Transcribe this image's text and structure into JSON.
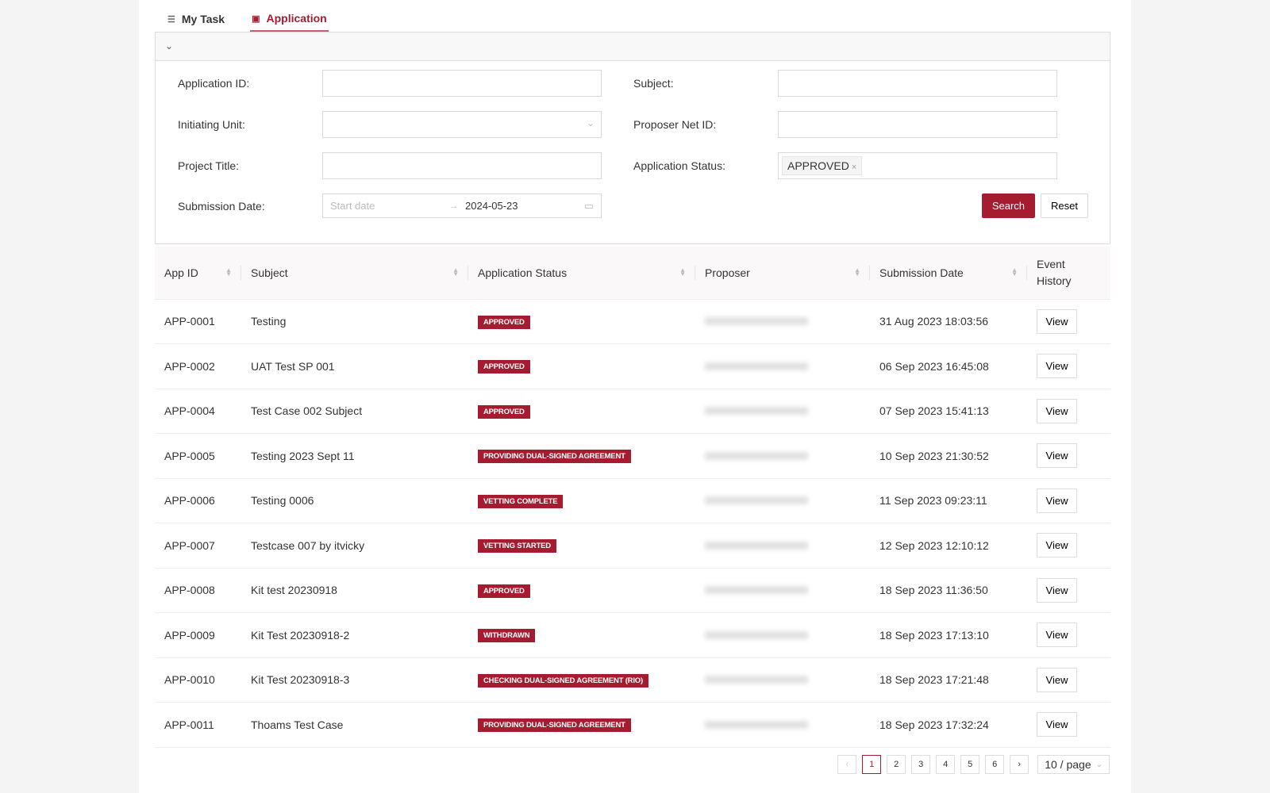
{
  "tabs": [
    {
      "label": "My Task",
      "icon": "list-icon"
    },
    {
      "label": "Application",
      "icon": "document-search-icon",
      "active": true
    }
  ],
  "filters": {
    "application_id": {
      "label": "Application ID",
      "value": ""
    },
    "subject": {
      "label": "Subject",
      "value": ""
    },
    "initiating_unit": {
      "label": "Initiating Unit",
      "value": ""
    },
    "proposer_net_id": {
      "label": "Proposer Net ID",
      "value": ""
    },
    "project_title": {
      "label": "Project Title",
      "value": ""
    },
    "application_status": {
      "label": "Application Status",
      "tags": [
        "APPROVED"
      ]
    },
    "submission_date": {
      "label": "Submission Date",
      "start_placeholder": "Start date",
      "end": "2024-05-23",
      "separator": "→"
    },
    "search_label": "Search",
    "reset_label": "Reset"
  },
  "table": {
    "headers": [
      "App ID",
      "Subject",
      "Application Status",
      "Proposer",
      "Submission Date",
      "Event History"
    ],
    "rows": [
      {
        "id": "APP-0001",
        "subject": "Testing",
        "status": "APPROVED",
        "date": "31 Aug 2023 18:03:56",
        "action": "View"
      },
      {
        "id": "APP-0002",
        "subject": "UAT Test SP 001",
        "status": "APPROVED",
        "date": "06 Sep 2023 16:45:08",
        "action": "View"
      },
      {
        "id": "APP-0004",
        "subject": "Test Case 002 Subject",
        "status": "APPROVED",
        "date": "07 Sep 2023 15:41:13",
        "action": "View"
      },
      {
        "id": "APP-0005",
        "subject": "Testing 2023 Sept 11",
        "status": "PROVIDING DUAL-SIGNED AGREEMENT",
        "date": "10 Sep 2023 21:30:52",
        "action": "View"
      },
      {
        "id": "APP-0006",
        "subject": "Testing 0006",
        "status": "VETTING COMPLETE",
        "date": "11 Sep 2023 09:23:11",
        "action": "View"
      },
      {
        "id": "APP-0007",
        "subject": "Testcase 007 by itvicky",
        "status": "VETTING STARTED",
        "date": "12 Sep 2023 12:10:12",
        "action": "View"
      },
      {
        "id": "APP-0008",
        "subject": "Kit test 20230918",
        "status": "APPROVED",
        "date": "18 Sep 2023 11:36:50",
        "action": "View"
      },
      {
        "id": "APP-0009",
        "subject": "Kit Test 20230918-2",
        "status": "WITHDRAWN",
        "date": "18 Sep 2023 17:13:10",
        "action": "View"
      },
      {
        "id": "APP-0010",
        "subject": "Kit Test 20230918-3",
        "status": "CHECKING DUAL-SIGNED AGREEMENT (RIO)",
        "date": "18 Sep 2023 17:21:48",
        "action": "View"
      },
      {
        "id": "APP-0011",
        "subject": "Thoams Test Case",
        "status": "PROVIDING DUAL-SIGNED AGREEMENT",
        "date": "18 Sep 2023 17:32:24",
        "action": "View"
      }
    ]
  },
  "pagination": {
    "pages": [
      "1",
      "2",
      "3",
      "4",
      "5",
      "6"
    ],
    "current": "1",
    "page_size": "10 / page"
  },
  "colors": {
    "accent": "#a51c30"
  }
}
